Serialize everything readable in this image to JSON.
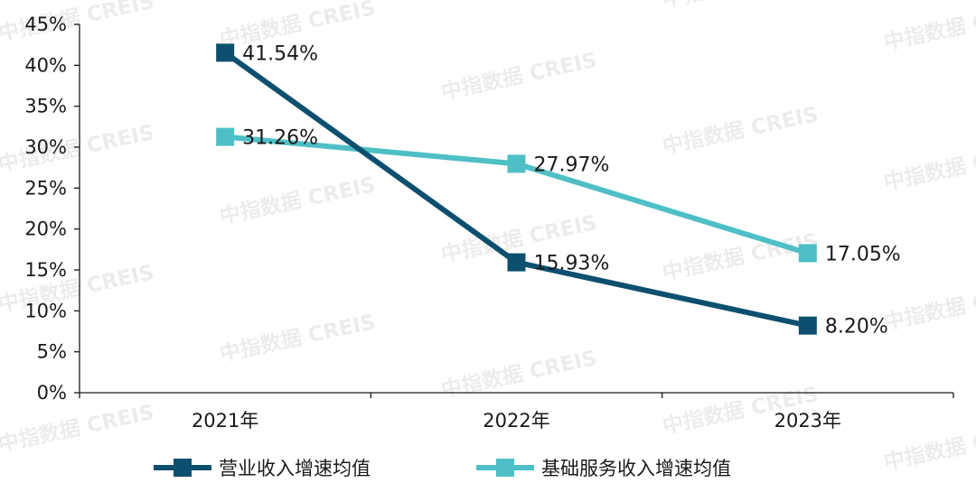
{
  "watermark_text": "中指数据  CREIS",
  "colors": {
    "series1": "#0d4f6e",
    "series2": "#4fbfc6",
    "axis": "#1a1a1a"
  },
  "chart_data": {
    "type": "line",
    "categories": [
      "2021年",
      "2022年",
      "2023年"
    ],
    "y_ticks": [
      "0%",
      "5%",
      "10%",
      "15%",
      "20%",
      "25%",
      "30%",
      "35%",
      "40%",
      "45%"
    ],
    "ylim": [
      0,
      45
    ],
    "grid": false,
    "legend_position": "bottom",
    "series": [
      {
        "name": "营业收入增速均值",
        "values": [
          41.54,
          15.93,
          8.2
        ],
        "labels": [
          "41.54%",
          "15.93%",
          "8.20%"
        ],
        "marker": "square"
      },
      {
        "name": "基础服务收入增速均值",
        "values": [
          31.26,
          27.97,
          17.05
        ],
        "labels": [
          "31.26%",
          "27.97%",
          "17.05%"
        ],
        "marker": "square"
      }
    ]
  }
}
